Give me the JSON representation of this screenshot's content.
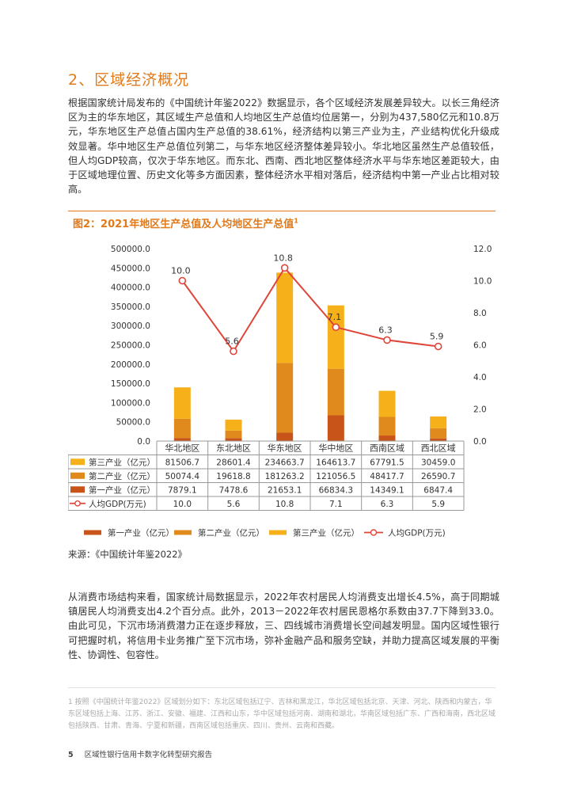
{
  "section": {
    "title": "2、区域经济概况"
  },
  "paragraphs": {
    "p1": "根据国家统计局发布的《中国统计年鉴2022》数据显示，各个区域经济发展差异较大。以长三角经济区为主的华东地区，其区域生产总值和人均地区生产总值均位居第一，分别为437,580亿元和10.8万元，华东地区生产总值占国内生产总值的38.61%，经济结构以第三产业为主，产业结构优化升级成效显著。华中地区生产总值位列第二，与华东地区经济整体差异较小。华北地区虽然生产总值较低，但人均GDP较高，仅次于华东地区。而东北、西南、西北地区整体经济水平与华东地区差距较大，由于区域地理位置、历史文化等多方面因素，整体经济水平相对落后，经济结构中第一产业占比相对较高。",
    "p2": "从消费市场结构来看，国家统计局数据显示，2022年农村居民人均消费支出增长4.5%，高于同期城镇居民人均消费支出4.2个百分点。此外，2013－2022年农村居民恩格尔系数由37.7下降到33.0。由此可见，下沉市场消费潜力正在逐步释放，三、四线城市消费增长空间越发明显。国内区域性银行可把握时机，将信用卡业务推广至下沉市场，弥补金融产品和服务空缺，并助力提高区域发展的平衡性、协调性、包容性。"
  },
  "figure": {
    "title": "图2：2021年地区生产总值及人均地区生产总值",
    "footnote_mark": "1"
  },
  "source": "来源：《中国统计年鉴2022》",
  "footnote": "1  按照《中国统计年鉴2022》区域划分如下：东北区域包括辽宁、吉林和黑龙江，华北区域包括北京、天津、河北、陕西和内蒙古，华东区域包括上海、江苏、浙江、安徽、福建、江西和山东，华中区域包括河南、湖南和湖北，华南区域包括广东、广西和海南，西北区域包括陕西、甘肃、青海、宁夏和新疆，西南区域包括重庆、四川、贵州、云南和西藏。",
  "footer": {
    "page": "5",
    "text": "区域性银行信用卡数字化转型研究报告"
  },
  "colors": {
    "accent": "#e07a1c",
    "primary": "#c8541a",
    "secondary": "#e08a1e",
    "tertiary": "#f5b01a",
    "line": "#e0453a"
  },
  "chart_data": {
    "type": "bar",
    "stacked": true,
    "categories": [
      "华北地区",
      "东北地区",
      "华东地区",
      "华中地区",
      "西南区域",
      "西北区域"
    ],
    "series": [
      {
        "name": "第一产业（亿元）",
        "axis": "left",
        "values": [
          7879.1,
          7478.6,
          21653.1,
          66834.3,
          14349.1,
          6847.4
        ]
      },
      {
        "name": "第二产业（亿元）",
        "axis": "left",
        "values": [
          50074.4,
          19618.8,
          181263.2,
          121056.5,
          48417.7,
          26590.7
        ]
      },
      {
        "name": "第三产业（亿元）",
        "axis": "left",
        "values": [
          81506.7,
          28601.4,
          234663.7,
          164613.7,
          67791.5,
          30459.0
        ]
      },
      {
        "name": "人均GDP(万元)",
        "axis": "right",
        "type": "line",
        "values": [
          10.0,
          5.6,
          10.8,
          7.1,
          6.3,
          5.9
        ]
      }
    ],
    "y_left": {
      "min": 0,
      "max": 500000,
      "ticks": [
        "0.0",
        "50000.0",
        "100000.0",
        "150000.0",
        "200000.0",
        "250000.0",
        "300000.0",
        "350000.0",
        "400000.0",
        "450000.0",
        "500000.0"
      ]
    },
    "y_right": {
      "min": 0,
      "max": 12,
      "ticks": [
        "0.0",
        "2.0",
        "4.0",
        "6.0",
        "8.0",
        "10.0",
        "12.0"
      ]
    },
    "point_labels": [
      "10.0",
      "5.6",
      "10.8",
      "7.1",
      "6.3",
      "5.9"
    ],
    "table": {
      "rows": [
        {
          "label": "第三产业（亿元）",
          "values": [
            "81506.7",
            "28601.4",
            "234663.7",
            "164613.7",
            "67791.5",
            "30459.0"
          ]
        },
        {
          "label": "第二产业（亿元）",
          "values": [
            "50074.4",
            "19618.8",
            "181263.2",
            "121056.5",
            "48417.7",
            "26590.7"
          ]
        },
        {
          "label": "第一产业（亿元）",
          "values": [
            "7879.1",
            "7478.6",
            "21653.1",
            "66834.3",
            "14349.1",
            "6847.4"
          ]
        },
        {
          "label": "人均GDP(万元)",
          "values": [
            "10.0",
            "5.6",
            "10.8",
            "7.1",
            "6.3",
            "5.9"
          ]
        }
      ]
    },
    "legend": [
      "第一产业（亿元）",
      "第二产业（亿元）",
      "第三产业（亿元）",
      "人均GDP(万元)"
    ],
    "legend_position": "bottom"
  }
}
